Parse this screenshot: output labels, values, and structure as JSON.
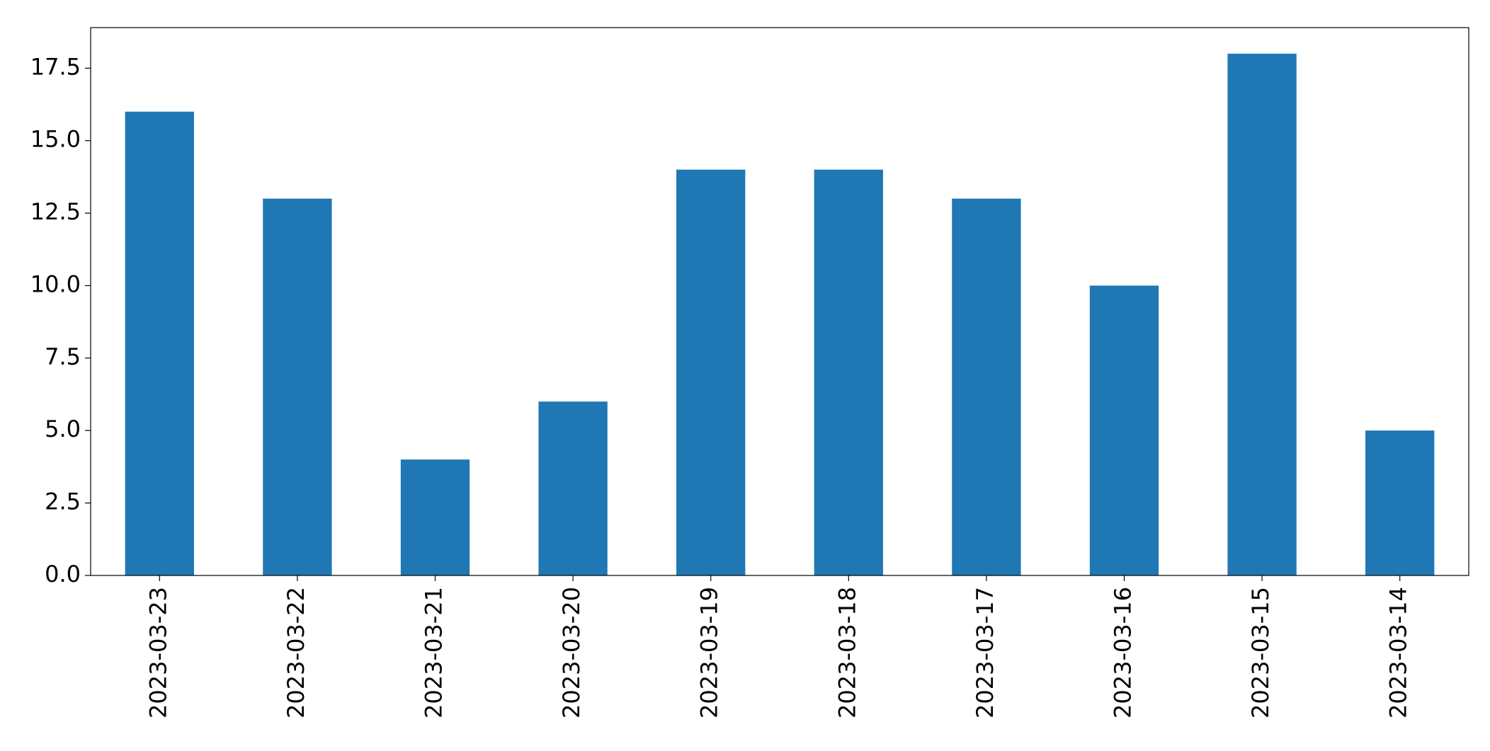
{
  "chart_data": {
    "type": "bar",
    "categories": [
      "2023-03-23",
      "2023-03-22",
      "2023-03-21",
      "2023-03-20",
      "2023-03-19",
      "2023-03-18",
      "2023-03-17",
      "2023-03-16",
      "2023-03-15",
      "2023-03-14"
    ],
    "values": [
      16,
      13,
      4,
      6,
      14,
      14,
      13,
      10,
      18,
      5
    ],
    "color": "#1f77b4",
    "ylim": [
      0,
      18.9
    ],
    "yticks": [
      {
        "value": 0,
        "label": "0.0"
      },
      2.5,
      {
        "value": 5,
        "label": "5.0"
      },
      7.5,
      {
        "value": 10,
        "label": "10.0"
      },
      12.5,
      {
        "value": 15,
        "label": "15.0"
      },
      17.5
    ],
    "grid": false
  }
}
